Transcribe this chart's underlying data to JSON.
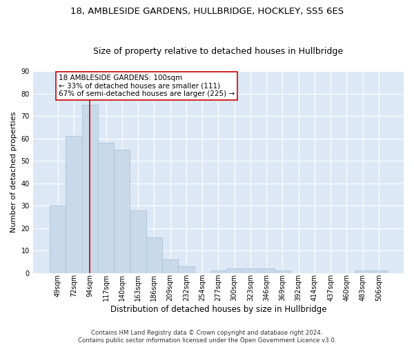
{
  "title": "18, AMBLESIDE GARDENS, HULLBRIDGE, HOCKLEY, SS5 6ES",
  "subtitle": "Size of property relative to detached houses in Hullbridge",
  "xlabel": "Distribution of detached houses by size in Hullbridge",
  "ylabel": "Number of detached properties",
  "categories": [
    "49sqm",
    "72sqm",
    "94sqm",
    "117sqm",
    "140sqm",
    "163sqm",
    "186sqm",
    "209sqm",
    "232sqm",
    "254sqm",
    "277sqm",
    "300sqm",
    "323sqm",
    "346sqm",
    "369sqm",
    "392sqm",
    "414sqm",
    "437sqm",
    "460sqm",
    "483sqm",
    "506sqm"
  ],
  "values": [
    30,
    61,
    75,
    58,
    55,
    28,
    16,
    6,
    3,
    0,
    1,
    2,
    2,
    2,
    1,
    0,
    0,
    0,
    0,
    1,
    1
  ],
  "bar_color": "#c9d9ea",
  "bar_edge_color": "#a8c4d8",
  "vline_x_index": 2,
  "vline_color": "#cc0000",
  "annotation_text": "18 AMBLESIDE GARDENS: 100sqm\n← 33% of detached houses are smaller (111)\n67% of semi-detached houses are larger (225) →",
  "annotation_box_facecolor": "#ffffff",
  "annotation_box_edgecolor": "#cc0000",
  "ylim": [
    0,
    90
  ],
  "yticks": [
    0,
    10,
    20,
    30,
    40,
    50,
    60,
    70,
    80,
    90
  ],
  "plot_bg_color": "#dce8f5",
  "footer_line1": "Contains HM Land Registry data © Crown copyright and database right 2024.",
  "footer_line2": "Contains public sector information licensed under the Open Government Licence v3.0.",
  "title_fontsize": 9.5,
  "subtitle_fontsize": 9,
  "xlabel_fontsize": 8.5,
  "ylabel_fontsize": 8,
  "tick_fontsize": 7,
  "annotation_fontsize": 7.5
}
